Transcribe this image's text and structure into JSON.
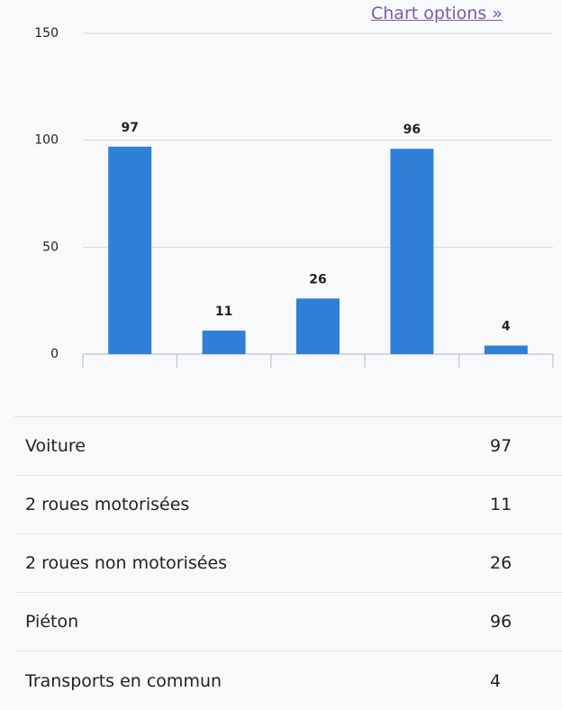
{
  "link": "Chart options »",
  "chart_data": {
    "type": "bar",
    "categories": [
      "Voiture",
      "2 roues motorisées",
      "2 roues non motorisées",
      "Piéton",
      "Transports en commun"
    ],
    "values": [
      97,
      11,
      26,
      96,
      4
    ],
    "color": "#2f7fd8",
    "ylim": [
      0,
      150
    ],
    "yticks": [
      0,
      50,
      100,
      150
    ],
    "grid": true
  }
}
